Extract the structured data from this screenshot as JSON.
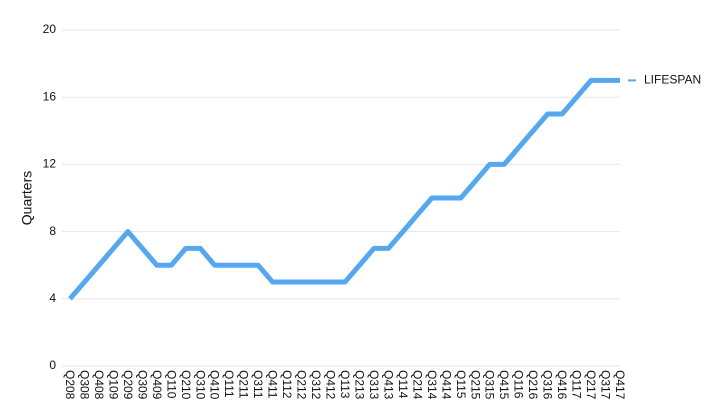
{
  "chart_data": {
    "type": "line",
    "y_label": "Quarters",
    "categories": [
      "Q208",
      "Q308",
      "Q408",
      "Q109",
      "Q209",
      "Q309",
      "Q409",
      "Q110",
      "Q210",
      "Q310",
      "Q410",
      "Q111",
      "Q211",
      "Q311",
      "Q411",
      "Q112",
      "Q212",
      "Q312",
      "Q412",
      "Q113",
      "Q213",
      "Q313",
      "Q413",
      "Q114",
      "Q214",
      "Q314",
      "Q414",
      "Q115",
      "Q215",
      "Q315",
      "Q415",
      "Q116",
      "Q216",
      "Q316",
      "Q416",
      "Q117",
      "Q217",
      "Q317",
      "Q417"
    ],
    "series": [
      {
        "name": "LIFESPAN",
        "color": "#55a8f0",
        "values": [
          4,
          5,
          6,
          7,
          8,
          7,
          6,
          6,
          7,
          7,
          6,
          6,
          6,
          6,
          5,
          5,
          5,
          5,
          5,
          5,
          6,
          7,
          7,
          8,
          9,
          10,
          10,
          10,
          11,
          12,
          12,
          13,
          14,
          15,
          15,
          16,
          17,
          17,
          17
        ]
      }
    ],
    "ylim": [
      0,
      20
    ],
    "yticks": [
      0,
      4,
      8,
      12,
      16,
      20
    ],
    "grid": true,
    "legend": "right"
  }
}
